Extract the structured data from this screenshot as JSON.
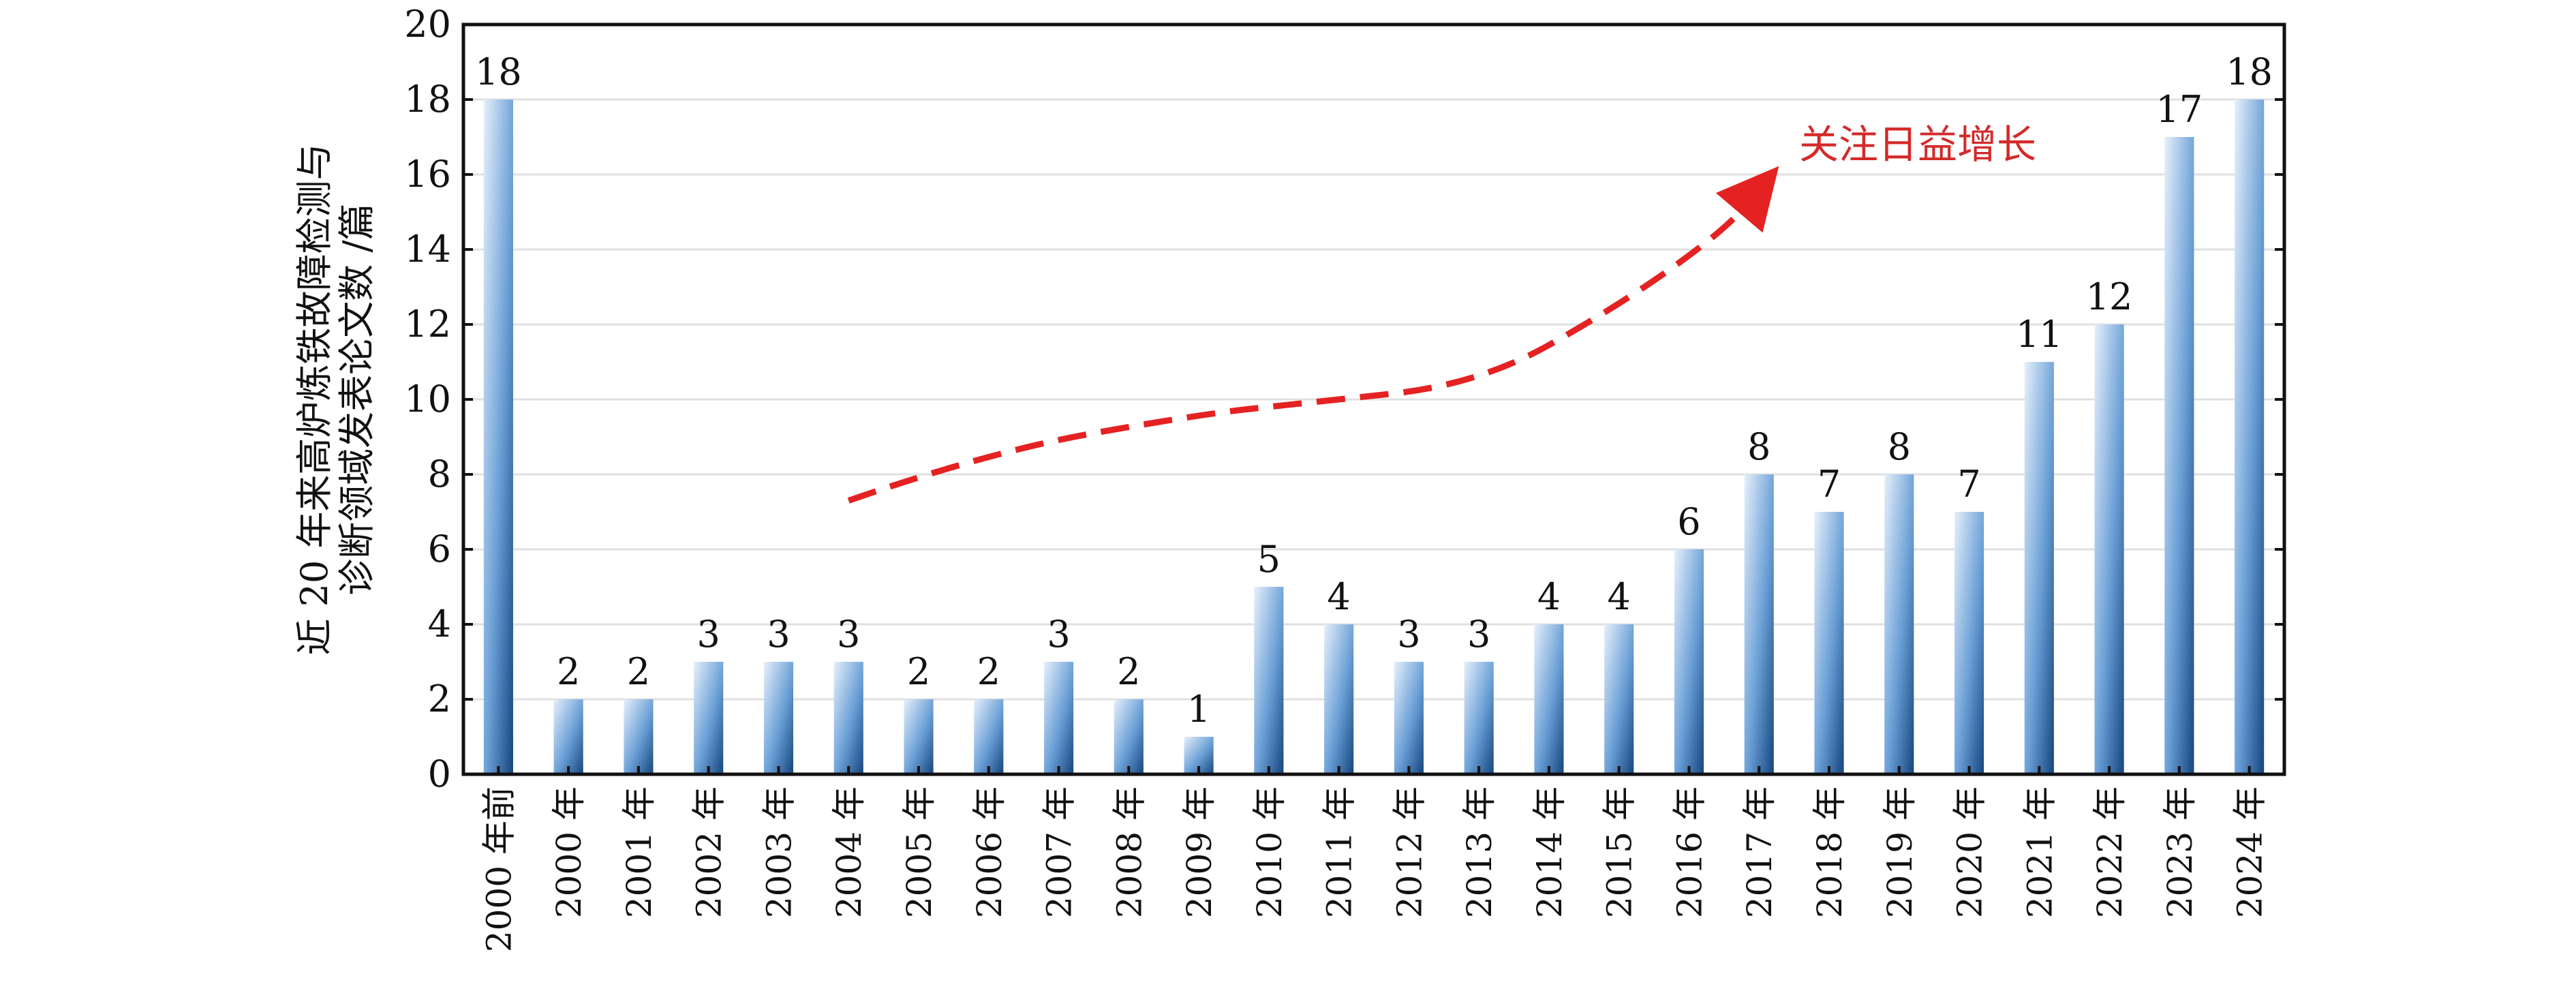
{
  "chart_data": {
    "type": "bar",
    "ylabel_lines": [
      "近 20 年来高炉炼铁故障检测与",
      "诊断领域发表论文数 /篇"
    ],
    "categories": [
      "2000 年前",
      "2000 年",
      "2001 年",
      "2002 年",
      "2003 年",
      "2004 年",
      "2005 年",
      "2006 年",
      "2007 年",
      "2008 年",
      "2009 年",
      "2010 年",
      "2011 年",
      "2012 年",
      "2013 年",
      "2014 年",
      "2015 年",
      "2016 年",
      "2017 年",
      "2018 年",
      "2019 年",
      "2020 年",
      "2021 年",
      "2022 年",
      "2023 年",
      "2024 年"
    ],
    "values": [
      18,
      2,
      2,
      3,
      3,
      3,
      2,
      2,
      3,
      2,
      1,
      5,
      4,
      3,
      3,
      4,
      4,
      6,
      8,
      7,
      8,
      7,
      11,
      12,
      17,
      18
    ],
    "ylim": [
      0,
      20
    ],
    "yticks": [
      0,
      2,
      4,
      6,
      8,
      10,
      12,
      14,
      16,
      18,
      20
    ],
    "grid": true,
    "bar_color": "#2e6db4",
    "annotation": {
      "text": "关注日益增长",
      "color": "#d42a2a",
      "trend": [
        [
          5.5,
          7.3
        ],
        [
          7.5,
          8.6
        ],
        [
          10.5,
          9.6
        ],
        [
          12.0,
          9.9
        ],
        [
          14.5,
          10.4
        ],
        [
          16.5,
          12.5
        ],
        [
          18.0,
          14.5
        ],
        [
          18.5,
          15.6
        ]
      ]
    }
  }
}
